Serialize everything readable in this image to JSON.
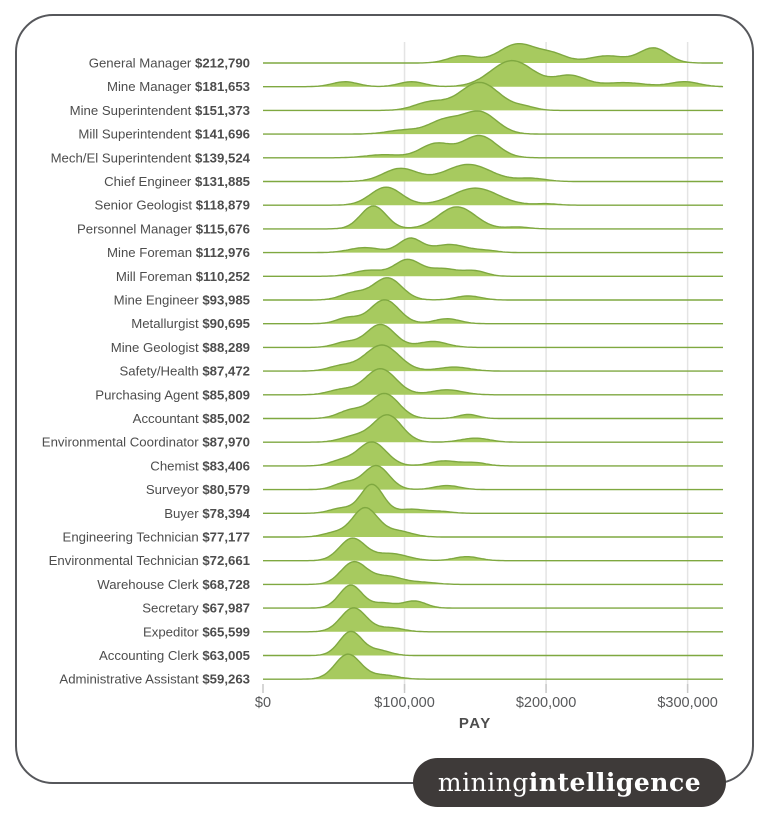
{
  "logo": {
    "text_regular": "mining",
    "text_bold": "intelligence",
    "bg_color": "#3e3a39",
    "text_color": "#ffffff"
  },
  "chart_data": {
    "type": "ridgeline",
    "title": "",
    "xlabel": "PAY",
    "x_domain": [
      0,
      325000
    ],
    "x_ticks": [
      {
        "label": "$0",
        "value": 0
      },
      {
        "label": "$100,000",
        "value": 100000
      },
      {
        "label": "$200,000",
        "value": 200000
      },
      {
        "label": "$300,000",
        "value": 300000
      }
    ],
    "grid": "vertical-only",
    "colors": {
      "fill": "#a7ca5f",
      "stroke": "#7fa840",
      "grid": "#e4e4e4",
      "tick": "#c9c9c9",
      "label_text": "#4d4d4d",
      "axis_text": "#58595b"
    },
    "rows": [
      {
        "label": "General Manager",
        "pay": "$212,790",
        "pay_value": 212790,
        "density": [
          {
            "mu": 141000,
            "sigma": 10000,
            "amp": 0.3
          },
          {
            "mu": 180000,
            "sigma": 13000,
            "amp": 0.8
          },
          {
            "mu": 205000,
            "sigma": 10000,
            "amp": 0.34
          },
          {
            "mu": 243000,
            "sigma": 13000,
            "amp": 0.3
          },
          {
            "mu": 276000,
            "sigma": 10000,
            "amp": 0.63
          }
        ]
      },
      {
        "label": "Mine Manager",
        "pay": "$181,653",
        "pay_value": 181653,
        "density": [
          {
            "mu": 58000,
            "sigma": 9000,
            "amp": 0.21
          },
          {
            "mu": 105000,
            "sigma": 9000,
            "amp": 0.21
          },
          {
            "mu": 176000,
            "sigma": 15000,
            "amp": 1.1
          },
          {
            "mu": 217000,
            "sigma": 11000,
            "amp": 0.46
          },
          {
            "mu": 255000,
            "sigma": 15000,
            "amp": 0.17
          },
          {
            "mu": 298000,
            "sigma": 10000,
            "amp": 0.21
          }
        ]
      },
      {
        "label": "Mine Superintendent",
        "pay": "$151,373",
        "pay_value": 151373,
        "density": [
          {
            "mu": 118000,
            "sigma": 11000,
            "amp": 0.34
          },
          {
            "mu": 153000,
            "sigma": 14000,
            "amp": 1.18
          },
          {
            "mu": 185000,
            "sigma": 8000,
            "amp": 0.13
          }
        ]
      },
      {
        "label": "Mill Superintendent",
        "pay": "$141,696",
        "pay_value": 141696,
        "density": [
          {
            "mu": 100000,
            "sigma": 12000,
            "amp": 0.17
          },
          {
            "mu": 128000,
            "sigma": 11000,
            "amp": 0.55
          },
          {
            "mu": 153000,
            "sigma": 12000,
            "amp": 0.93
          }
        ]
      },
      {
        "label": "Mech/El Superintendent",
        "pay": "$139,524",
        "pay_value": 139524,
        "density": [
          {
            "mu": 85000,
            "sigma": 12000,
            "amp": 0.13
          },
          {
            "mu": 122000,
            "sigma": 11000,
            "amp": 0.59
          },
          {
            "mu": 153000,
            "sigma": 12000,
            "amp": 0.93
          }
        ]
      },
      {
        "label": "Chief Engineer",
        "pay": "$131,885",
        "pay_value": 131885,
        "density": [
          {
            "mu": 97000,
            "sigma": 12000,
            "amp": 0.55
          },
          {
            "mu": 145000,
            "sigma": 16000,
            "amp": 0.72
          },
          {
            "mu": 190000,
            "sigma": 10000,
            "amp": 0.13
          }
        ]
      },
      {
        "label": "Senior Geologist",
        "pay": "$118,879",
        "pay_value": 118879,
        "density": [
          {
            "mu": 87000,
            "sigma": 11000,
            "amp": 0.76
          },
          {
            "mu": 150000,
            "sigma": 16000,
            "amp": 0.72
          },
          {
            "mu": 200000,
            "sigma": 8000,
            "amp": 0.06
          }
        ]
      },
      {
        "label": "Personnel Manager",
        "pay": "$115,676",
        "pay_value": 115676,
        "density": [
          {
            "mu": 78000,
            "sigma": 9000,
            "amp": 0.97
          },
          {
            "mu": 137000,
            "sigma": 13000,
            "amp": 0.93
          },
          {
            "mu": 180000,
            "sigma": 8000,
            "amp": 0.08
          }
        ]
      },
      {
        "label": "Mine Foreman",
        "pay": "$112,976",
        "pay_value": 112976,
        "density": [
          {
            "mu": 72000,
            "sigma": 11000,
            "amp": 0.21
          },
          {
            "mu": 104000,
            "sigma": 8000,
            "amp": 0.59
          },
          {
            "mu": 132000,
            "sigma": 12000,
            "amp": 0.34
          },
          {
            "mu": 158000,
            "sigma": 8000,
            "amp": 0.08
          }
        ]
      },
      {
        "label": "Mill Foreman",
        "pay": "$110,252",
        "pay_value": 110252,
        "density": [
          {
            "mu": 75000,
            "sigma": 11000,
            "amp": 0.25
          },
          {
            "mu": 102000,
            "sigma": 9000,
            "amp": 0.68
          },
          {
            "mu": 127000,
            "sigma": 11000,
            "amp": 0.32
          },
          {
            "mu": 150000,
            "sigma": 8000,
            "amp": 0.21
          }
        ]
      },
      {
        "label": "Mine Engineer",
        "pay": "$93,985",
        "pay_value": 93985,
        "density": [
          {
            "mu": 64000,
            "sigma": 9000,
            "amp": 0.3
          },
          {
            "mu": 88000,
            "sigma": 10000,
            "amp": 0.93
          },
          {
            "mu": 145000,
            "sigma": 9000,
            "amp": 0.17
          }
        ]
      },
      {
        "label": "Metallurgist",
        "pay": "$90,695",
        "pay_value": 90695,
        "density": [
          {
            "mu": 60000,
            "sigma": 8000,
            "amp": 0.25
          },
          {
            "mu": 86000,
            "sigma": 10000,
            "amp": 1.01
          },
          {
            "mu": 130000,
            "sigma": 9000,
            "amp": 0.21
          }
        ]
      },
      {
        "label": "Mine Geologist",
        "pay": "$88,289",
        "pay_value": 88289,
        "density": [
          {
            "mu": 58000,
            "sigma": 8000,
            "amp": 0.21
          },
          {
            "mu": 83000,
            "sigma": 10000,
            "amp": 0.97
          },
          {
            "mu": 120000,
            "sigma": 10000,
            "amp": 0.25
          }
        ]
      },
      {
        "label": "Safety/Health",
        "pay": "$87,472",
        "pay_value": 87472,
        "density": [
          {
            "mu": 55000,
            "sigma": 9000,
            "amp": 0.21
          },
          {
            "mu": 84000,
            "sigma": 12000,
            "amp": 1.1
          },
          {
            "mu": 135000,
            "sigma": 11000,
            "amp": 0.17
          }
        ]
      },
      {
        "label": "Purchasing Agent",
        "pay": "$85,809",
        "pay_value": 85809,
        "density": [
          {
            "mu": 55000,
            "sigma": 9000,
            "amp": 0.21
          },
          {
            "mu": 83000,
            "sigma": 11000,
            "amp": 1.1
          },
          {
            "mu": 130000,
            "sigma": 11000,
            "amp": 0.21
          }
        ]
      },
      {
        "label": "Accountant",
        "pay": "$85,002",
        "pay_value": 85002,
        "density": [
          {
            "mu": 62000,
            "sigma": 9000,
            "amp": 0.34
          },
          {
            "mu": 86000,
            "sigma": 10000,
            "amp": 1.05
          },
          {
            "mu": 145000,
            "sigma": 7000,
            "amp": 0.17
          }
        ]
      },
      {
        "label": "Environmental Coordinator",
        "pay": "$87,970",
        "pay_value": 87970,
        "density": [
          {
            "mu": 65000,
            "sigma": 10000,
            "amp": 0.25
          },
          {
            "mu": 88000,
            "sigma": 10000,
            "amp": 1.14
          },
          {
            "mu": 150000,
            "sigma": 10000,
            "amp": 0.17
          }
        ]
      },
      {
        "label": "Chemist",
        "pay": "$83,406",
        "pay_value": 83406,
        "density": [
          {
            "mu": 55000,
            "sigma": 8000,
            "amp": 0.21
          },
          {
            "mu": 77000,
            "sigma": 10000,
            "amp": 1.01
          },
          {
            "mu": 128000,
            "sigma": 10000,
            "amp": 0.21
          },
          {
            "mu": 150000,
            "sigma": 8000,
            "amp": 0.13
          }
        ]
      },
      {
        "label": "Surveyor",
        "pay": "$80,579",
        "pay_value": 80579,
        "density": [
          {
            "mu": 58000,
            "sigma": 8000,
            "amp": 0.28
          },
          {
            "mu": 80000,
            "sigma": 9000,
            "amp": 1.01
          },
          {
            "mu": 130000,
            "sigma": 9000,
            "amp": 0.17
          }
        ]
      },
      {
        "label": "Buyer",
        "pay": "$78,394",
        "pay_value": 78394,
        "density": [
          {
            "mu": 55000,
            "sigma": 8000,
            "amp": 0.21
          },
          {
            "mu": 77000,
            "sigma": 8000,
            "amp": 1.22
          },
          {
            "mu": 105000,
            "sigma": 9000,
            "amp": 0.17
          },
          {
            "mu": 125000,
            "sigma": 8000,
            "amp": 0.08
          }
        ]
      },
      {
        "label": "Engineering Technician",
        "pay": "$77,177",
        "pay_value": 77177,
        "density": [
          {
            "mu": 50000,
            "sigma": 8000,
            "amp": 0.17
          },
          {
            "mu": 72000,
            "sigma": 9000,
            "amp": 1.22
          },
          {
            "mu": 95000,
            "sigma": 10000,
            "amp": 0.25
          }
        ]
      },
      {
        "label": "Environmental Technician",
        "pay": "$72,661",
        "pay_value": 72661,
        "density": [
          {
            "mu": 63000,
            "sigma": 9000,
            "amp": 0.93
          },
          {
            "mu": 90000,
            "sigma": 12000,
            "amp": 0.3
          },
          {
            "mu": 144000,
            "sigma": 9000,
            "amp": 0.17
          }
        ]
      },
      {
        "label": "Warehouse Clerk",
        "pay": "$68,728",
        "pay_value": 68728,
        "density": [
          {
            "mu": 64000,
            "sigma": 9000,
            "amp": 0.93
          },
          {
            "mu": 88000,
            "sigma": 11000,
            "amp": 0.34
          },
          {
            "mu": 114000,
            "sigma": 9000,
            "amp": 0.08
          }
        ]
      },
      {
        "label": "Secretary",
        "pay": "$67,987",
        "pay_value": 67987,
        "density": [
          {
            "mu": 62000,
            "sigma": 8000,
            "amp": 0.97
          },
          {
            "mu": 85000,
            "sigma": 8000,
            "amp": 0.21
          },
          {
            "mu": 107000,
            "sigma": 8000,
            "amp": 0.3
          }
        ]
      },
      {
        "label": "Expeditor",
        "pay": "$65,599",
        "pay_value": 65599,
        "density": [
          {
            "mu": 64000,
            "sigma": 9000,
            "amp": 1.01
          },
          {
            "mu": 90000,
            "sigma": 9000,
            "amp": 0.17
          }
        ]
      },
      {
        "label": "Accounting Clerk",
        "pay": "$63,005",
        "pay_value": 63005,
        "density": [
          {
            "mu": 62000,
            "sigma": 8000,
            "amp": 1.01
          },
          {
            "mu": 82000,
            "sigma": 8000,
            "amp": 0.21
          }
        ]
      },
      {
        "label": "Administrative Assistant",
        "pay": "$59,263",
        "pay_value": 59263,
        "density": [
          {
            "mu": 60000,
            "sigma": 9000,
            "amp": 1.05
          },
          {
            "mu": 85000,
            "sigma": 10000,
            "amp": 0.17
          }
        ]
      }
    ]
  }
}
